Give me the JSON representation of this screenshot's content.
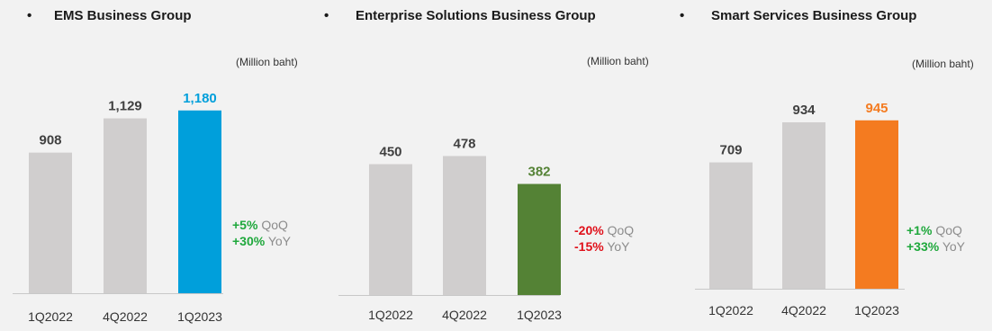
{
  "panels": [
    {
      "title": "EMS Business Group",
      "unit": "(Million baht)",
      "qoq": {
        "value": "+5%",
        "label": "QoQ",
        "color": "#1fa83c"
      },
      "yoy": {
        "value": "+30%",
        "label": "YoY",
        "color": "#1fa83c"
      },
      "highlight_color": "#009fdb",
      "value_labels": [
        "908",
        "1,129",
        "1,180"
      ]
    },
    {
      "title": "Enterprise Solutions Business Group",
      "unit": "(Million baht)",
      "qoq": {
        "value": "-20%",
        "label": "QoQ",
        "color": "#e0101a"
      },
      "yoy": {
        "value": "-15%",
        "label": "YoY",
        "color": "#e0101a"
      },
      "highlight_color": "#548235",
      "value_labels": [
        "450",
        "478",
        "382"
      ]
    },
    {
      "title": "Smart Services Business Group",
      "unit": "(Million baht)",
      "qoq": {
        "value": "+1%",
        "label": "QoQ",
        "color": "#1fa83c"
      },
      "yoy": {
        "value": "+33%",
        "label": "YoY",
        "color": "#1fa83c"
      },
      "highlight_color": "#f47b20",
      "value_labels": [
        "709",
        "934",
        "945"
      ]
    }
  ],
  "chart_data": [
    {
      "type": "bar",
      "title": "EMS Business Group",
      "ylabel": "(Million baht)",
      "categories": [
        "1Q2022",
        "4Q2022",
        "1Q2023"
      ],
      "values": [
        908,
        1129,
        1180
      ],
      "colors": [
        "#d0cece",
        "#d0cece",
        "#009fdb"
      ],
      "ylim": [
        0,
        1400
      ],
      "grid": false
    },
    {
      "type": "bar",
      "title": "Enterprise Solutions Business Group",
      "ylabel": "(Million baht)",
      "categories": [
        "1Q2022",
        "4Q2022",
        "1Q2023"
      ],
      "values": [
        450,
        478,
        382
      ],
      "colors": [
        "#d0cece",
        "#d0cece",
        "#548235"
      ],
      "ylim": [
        0,
        600
      ],
      "grid": false
    },
    {
      "type": "bar",
      "title": "Smart Services Business Group",
      "ylabel": "(Million baht)",
      "categories": [
        "1Q2022",
        "4Q2022",
        "1Q2023"
      ],
      "values": [
        709,
        934,
        945
      ],
      "colors": [
        "#d0cece",
        "#d0cece",
        "#f47b20"
      ],
      "ylim": [
        0,
        1100
      ],
      "grid": false
    }
  ]
}
